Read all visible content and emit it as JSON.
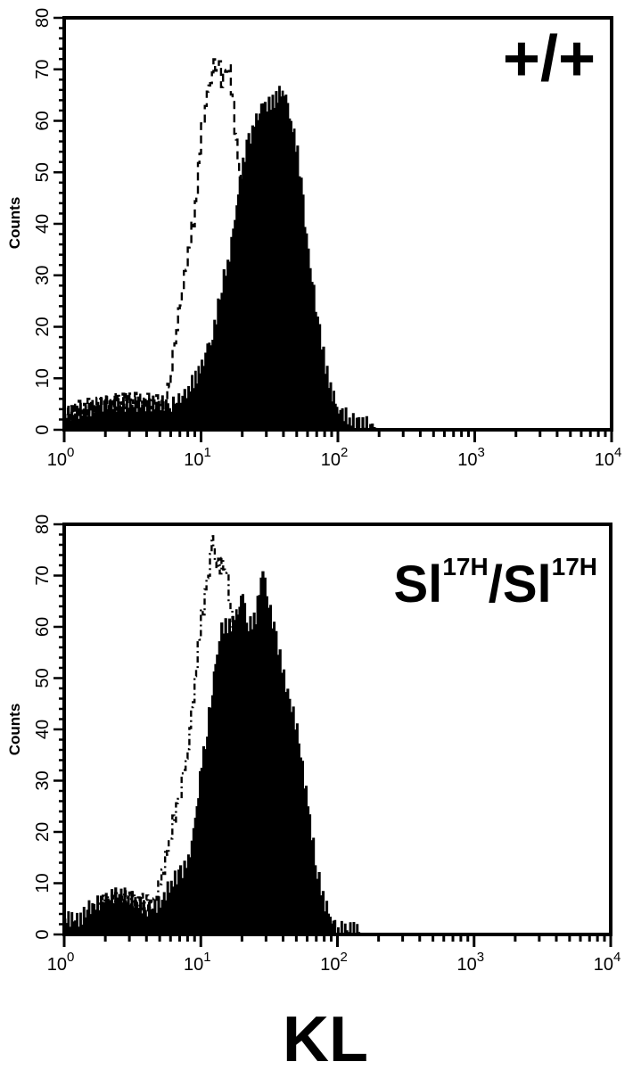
{
  "chart_data": [
    {
      "type": "area",
      "panel_label": "+/+",
      "ylabel": "Counts",
      "xlabel": "",
      "xscale": "log",
      "xlim": [
        1,
        10000
      ],
      "ylim": [
        0,
        80
      ],
      "x_tick_labels": [
        {
          "base": "10",
          "exp": "0"
        },
        {
          "base": "10",
          "exp": "1"
        },
        {
          "base": "10",
          "exp": "2"
        },
        {
          "base": "10",
          "exp": "3"
        },
        {
          "base": "10",
          "exp": "4"
        }
      ],
      "y_tick_labels": [
        "0",
        "10",
        "20",
        "30",
        "40",
        "50",
        "60",
        "70",
        "80"
      ],
      "grid": false,
      "series": [
        {
          "style": "filled",
          "color": "#000000",
          "x": [
            1,
            1.5,
            2,
            3,
            4,
            5,
            6,
            7,
            8,
            9,
            10,
            11,
            12,
            14,
            16,
            18,
            20,
            22,
            25,
            28,
            32,
            36,
            40,
            45,
            50,
            55,
            60,
            70,
            80,
            90,
            100,
            120,
            140,
            160,
            200,
            10000
          ],
          "y": [
            3,
            4,
            5,
            5,
            5,
            5,
            5,
            6,
            8,
            10,
            12,
            16,
            18,
            28,
            34,
            44,
            52,
            56,
            60,
            63,
            63,
            65,
            66,
            60,
            54,
            44,
            34,
            22,
            12,
            7,
            4,
            2,
            1,
            1,
            0,
            0
          ]
        },
        {
          "style": "dashed",
          "color": "#000000",
          "x": [
            1,
            1.2,
            2,
            3,
            5,
            5.5,
            6,
            7,
            8,
            9,
            10,
            11,
            12,
            13,
            14,
            15,
            16,
            17,
            18,
            20,
            22
          ],
          "y": [
            2,
            4,
            5,
            6,
            5,
            5,
            12,
            25,
            35,
            43,
            58,
            65,
            70,
            72,
            68,
            70,
            70,
            63,
            55,
            45,
            38
          ]
        }
      ]
    },
    {
      "type": "area",
      "panel_label": {
        "base": "Sl",
        "sup": "17H",
        "sep": "/"
      },
      "ylabel": "Counts",
      "xlabel": "KL",
      "xscale": "log",
      "xlim": [
        1,
        10000
      ],
      "ylim": [
        0,
        80
      ],
      "x_tick_labels": [
        {
          "base": "10",
          "exp": "0"
        },
        {
          "base": "10",
          "exp": "1"
        },
        {
          "base": "10",
          "exp": "2"
        },
        {
          "base": "10",
          "exp": "3"
        },
        {
          "base": "10",
          "exp": "4"
        }
      ],
      "y_tick_labels": [
        "0",
        "10",
        "20",
        "30",
        "40",
        "50",
        "60",
        "70",
        "80"
      ],
      "grid": false,
      "series": [
        {
          "style": "filled",
          "color": "#000000",
          "x": [
            1,
            1.3,
            1.5,
            2,
            2.5,
            3,
            4,
            5,
            6,
            7,
            8,
            9,
            10,
            11,
            12,
            13,
            14,
            16,
            18,
            20,
            22,
            25,
            28,
            30,
            35,
            40,
            50,
            60,
            70,
            80,
            90,
            100,
            130,
            150,
            10000
          ],
          "y": [
            3,
            3,
            5,
            7,
            8,
            7,
            5,
            6,
            10,
            12,
            14,
            22,
            33,
            40,
            48,
            55,
            60,
            60,
            62,
            66,
            60,
            62,
            72,
            66,
            58,
            50,
            40,
            25,
            12,
            6,
            3,
            1,
            1,
            0,
            0
          ]
        },
        {
          "style": "dash-dot",
          "color": "#000000",
          "x": [
            1.8,
            3,
            4,
            4.5,
            5,
            6,
            7,
            8,
            9,
            10,
            11,
            12,
            13,
            15,
            17,
            19
          ],
          "y": [
            6,
            7,
            6,
            6,
            10,
            20,
            28,
            37,
            50,
            62,
            68,
            77,
            72,
            72,
            60,
            55
          ]
        }
      ]
    }
  ]
}
